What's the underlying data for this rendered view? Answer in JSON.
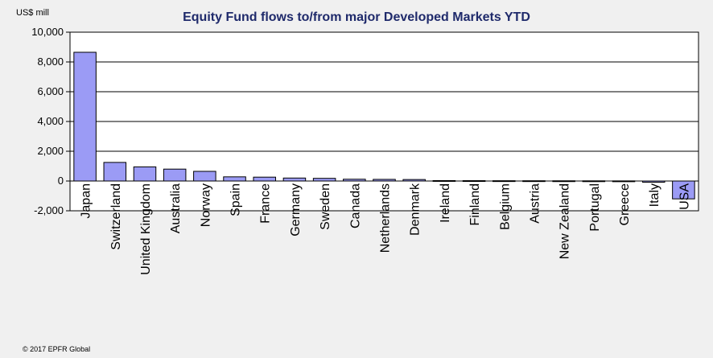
{
  "chart_data": {
    "type": "bar",
    "title": "Equity Fund flows to/from major Developed Markets YTD",
    "unit_label": "US$ mill",
    "xlabel": "",
    "ylabel": "US$ mill",
    "ylim": [
      -2000,
      10000
    ],
    "yticks": [
      10000,
      8000,
      6000,
      4000,
      2000,
      0,
      -2000
    ],
    "ytick_labels": [
      "10,000",
      "8,000",
      "6,000",
      "4,000",
      "2,000",
      "0",
      "-2,000"
    ],
    "grid": true,
    "categories": [
      "Japan",
      "Switzerland",
      "United Kingdom",
      "Australia",
      "Norway",
      "Spain",
      "France",
      "Germany",
      "Sweden",
      "Canada",
      "Netherlands",
      "Denmark",
      "Ireland",
      "Finland",
      "Belgium",
      "Austria",
      "New Zealand",
      "Portugal",
      "Greece",
      "Italy",
      "USA"
    ],
    "values": [
      8650,
      1250,
      950,
      800,
      650,
      280,
      260,
      200,
      180,
      120,
      110,
      100,
      30,
      25,
      20,
      18,
      15,
      12,
      8,
      -80,
      -1200
    ],
    "bar_color": "#9b9bf5"
  },
  "footer": {
    "credit": "© 2017 EPFR Global"
  }
}
